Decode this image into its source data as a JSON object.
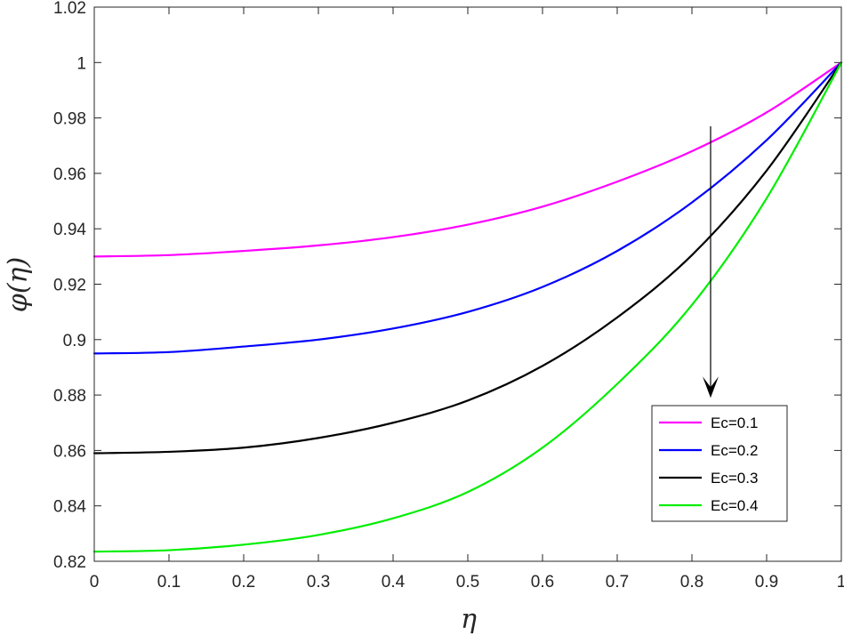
{
  "chart_data": {
    "type": "line",
    "title": "",
    "xlabel": "η",
    "ylabel": "φ(η)",
    "xlim": [
      0,
      1
    ],
    "ylim": [
      0.82,
      1.02
    ],
    "xticks": [
      "0",
      "0.1",
      "0.2",
      "0.3",
      "0.4",
      "0.5",
      "0.6",
      "0.7",
      "0.8",
      "0.9",
      "1"
    ],
    "yticks": [
      "0.82",
      "0.84",
      "0.86",
      "0.88",
      "0.9",
      "0.92",
      "0.94",
      "0.96",
      "0.98",
      "1",
      "1.02"
    ],
    "grid": false,
    "legend_position": "bottom-right",
    "x": [
      0,
      0.1,
      0.2,
      0.3,
      0.4,
      0.5,
      0.6,
      0.7,
      0.8,
      0.9,
      1.0
    ],
    "series": [
      {
        "name": "Ec=0.1",
        "color": "#ff00ff",
        "values": [
          0.93,
          0.9305,
          0.932,
          0.934,
          0.937,
          0.9415,
          0.948,
          0.957,
          0.968,
          0.982,
          1.0
        ]
      },
      {
        "name": "Ec=0.2",
        "color": "#0000ff",
        "values": [
          0.895,
          0.8955,
          0.8975,
          0.9,
          0.904,
          0.91,
          0.919,
          0.932,
          0.9495,
          0.972,
          1.0
        ]
      },
      {
        "name": "Ec=0.3",
        "color": "#000000",
        "values": [
          0.859,
          0.8595,
          0.861,
          0.8645,
          0.87,
          0.878,
          0.8905,
          0.908,
          0.9305,
          0.961,
          1.0
        ]
      },
      {
        "name": "Ec=0.4",
        "color": "#00ee00",
        "values": [
          0.8235,
          0.824,
          0.826,
          0.8295,
          0.8355,
          0.845,
          0.861,
          0.884,
          0.9125,
          0.951,
          1.0
        ]
      }
    ],
    "annotation": {
      "type": "arrow",
      "x": 0.825,
      "y_start": 0.977,
      "y_end": 0.879,
      "color": "#000000"
    }
  }
}
